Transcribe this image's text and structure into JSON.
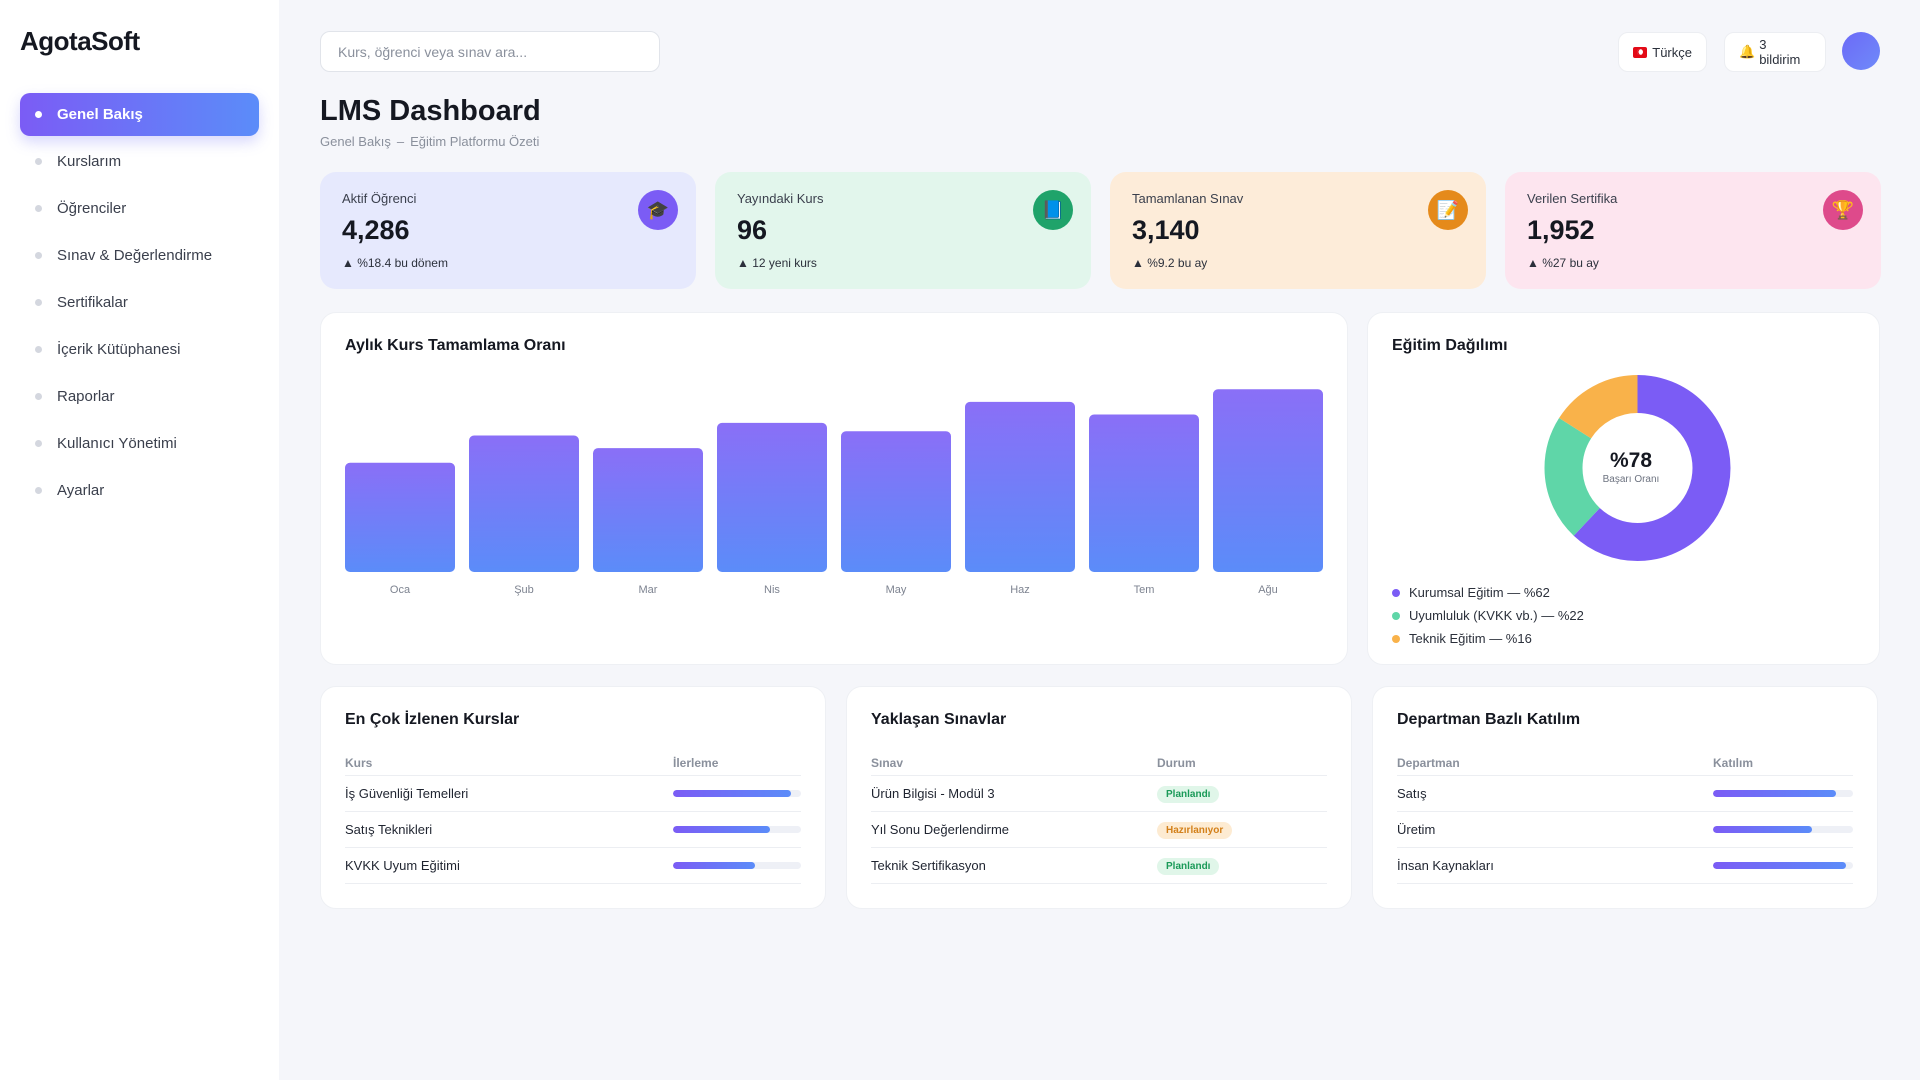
{
  "app": {
    "name": "AgotaSoft"
  },
  "sidebar": {
    "items": [
      {
        "label": "Genel Bakış",
        "active": true
      },
      {
        "label": "Kurslarım",
        "active": false
      },
      {
        "label": "Öğrenciler",
        "active": false
      },
      {
        "label": "Sınav & Değerlendirme",
        "active": false
      },
      {
        "label": "Sertifikalar",
        "active": false
      },
      {
        "label": "İçerik Kütüphanesi",
        "active": false
      },
      {
        "label": "Raporlar",
        "active": false
      },
      {
        "label": "Kullanıcı Yönetimi",
        "active": false
      },
      {
        "label": "Ayarlar",
        "active": false
      }
    ]
  },
  "topbar": {
    "search_placeholder": "Kurs, öğrenci veya sınav ara...",
    "language": "Türkçe",
    "notifications": "3 bildirim"
  },
  "header": {
    "title": "LMS Dashboard",
    "breadcrumb": [
      "Genel Bakış",
      "Eğitim Platformu Özeti"
    ],
    "breadcrumb_separator": "–"
  },
  "stats": [
    {
      "label": "Aktif Öğrenci",
      "value": "4,286",
      "delta": "▲ %18.4 bu dönem",
      "icon": "graduation-cap-icon",
      "glyph": "🎓",
      "color": "#7b5cf5"
    },
    {
      "label": "Yayındaki Kurs",
      "value": "96",
      "delta": "▲ 12 yeni kurs",
      "icon": "book-icon",
      "glyph": "📘",
      "color": "#1fa36a"
    },
    {
      "label": "Tamamlanan Sınav",
      "value": "3,140",
      "delta": "▲ %9.2 bu ay",
      "icon": "memo-icon",
      "glyph": "📝",
      "color": "#e58a1b"
    },
    {
      "label": "Verilen Sertifika",
      "value": "1,952",
      "delta": "▲ %27 bu ay",
      "icon": "trophy-icon",
      "glyph": "🏆",
      "color": "#de4a8b"
    }
  ],
  "chart_data": [
    {
      "type": "bar",
      "title": "Aylık Kurs Tamamlama Oranı",
      "categories": [
        "Oca",
        "Şub",
        "Mar",
        "Nis",
        "May",
        "Haz",
        "Tem",
        "Ağu"
      ],
      "values": [
        52,
        65,
        59,
        71,
        67,
        81,
        75,
        87
      ],
      "ylim": [
        0,
        100
      ],
      "grid": false,
      "colors": [
        "#8a6ff7",
        "#5b8cf9"
      ]
    },
    {
      "type": "pie",
      "title": "Eğitim Dağılımı",
      "center_value": "%78",
      "center_label": "Başarı Oranı",
      "slices": [
        {
          "label": "Kurumsal Eğitim — %62",
          "value": 62,
          "color": "#7b5cf5"
        },
        {
          "label": "Uyumluluk (KVKK vb.) — %22",
          "value": 22,
          "color": "#5fd6a8"
        },
        {
          "label": "Teknik Eğitim — %16",
          "value": 16,
          "color": "#f9b24a"
        }
      ]
    }
  ],
  "tables": {
    "courses": {
      "title": "En Çok İzlenen Kurslar",
      "headers": [
        "Kurs",
        "İlerleme"
      ],
      "rows": [
        {
          "name": "İş Güvenliği Temelleri",
          "progress": 0.92
        },
        {
          "name": "Satış Teknikleri",
          "progress": 0.76
        },
        {
          "name": "KVKK Uyum Eğitimi",
          "progress": 0.64
        }
      ]
    },
    "exams": {
      "title": "Yaklaşan Sınavlar",
      "headers": [
        "Sınav",
        "Durum"
      ],
      "rows": [
        {
          "name": "Ürün Bilgisi - Modül 3",
          "status": "Planlandı",
          "status_color": "green"
        },
        {
          "name": "Yıl Sonu Değerlendirme",
          "status": "Hazırlanıyor",
          "status_color": "orange"
        },
        {
          "name": "Teknik Sertifikasyon",
          "status": "Planlandı",
          "status_color": "green"
        }
      ]
    },
    "departments": {
      "title": "Departman Bazlı Katılım",
      "headers": [
        "Departman",
        "Katılım"
      ],
      "rows": [
        {
          "name": "Satış",
          "progress": 0.88
        },
        {
          "name": "Üretim",
          "progress": 0.71
        },
        {
          "name": "İnsan Kaynakları",
          "progress": 0.95
        }
      ]
    }
  }
}
